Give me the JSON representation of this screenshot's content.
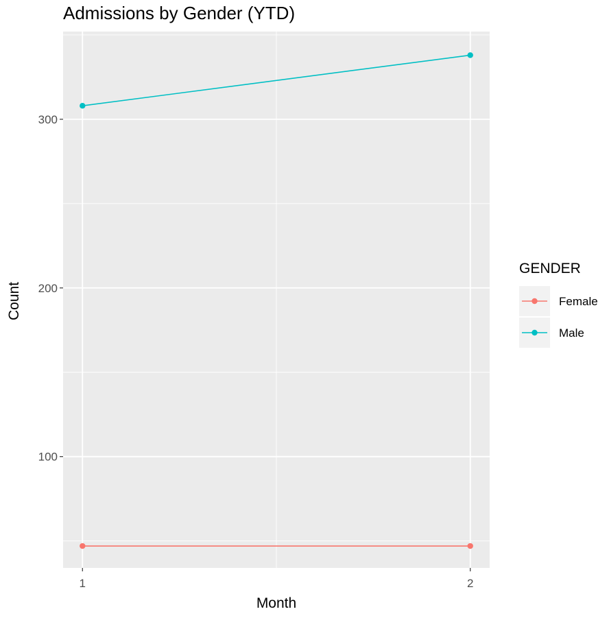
{
  "chart_data": {
    "type": "line",
    "title": "Admissions by Gender (YTD)",
    "xlabel": "Month",
    "ylabel": "Count",
    "x": [
      1,
      2
    ],
    "xticks": [
      "1",
      "2"
    ],
    "yticks": [
      "100",
      "200",
      "300"
    ],
    "xlim": [
      0.95,
      2.05
    ],
    "ylim": [
      34,
      352
    ],
    "grid": true,
    "legend": {
      "title": "GENDER",
      "placement": "right"
    },
    "series": [
      {
        "name": "Female",
        "values": [
          47,
          47
        ],
        "color": "#F8766D"
      },
      {
        "name": "Male",
        "values": [
          308,
          338
        ],
        "color": "#00BFC4"
      }
    ],
    "colors": {
      "panel_background": "#EBEBEB",
      "gridline": "#FFFFFF",
      "legend_key_background": "#F2F2F2"
    }
  }
}
